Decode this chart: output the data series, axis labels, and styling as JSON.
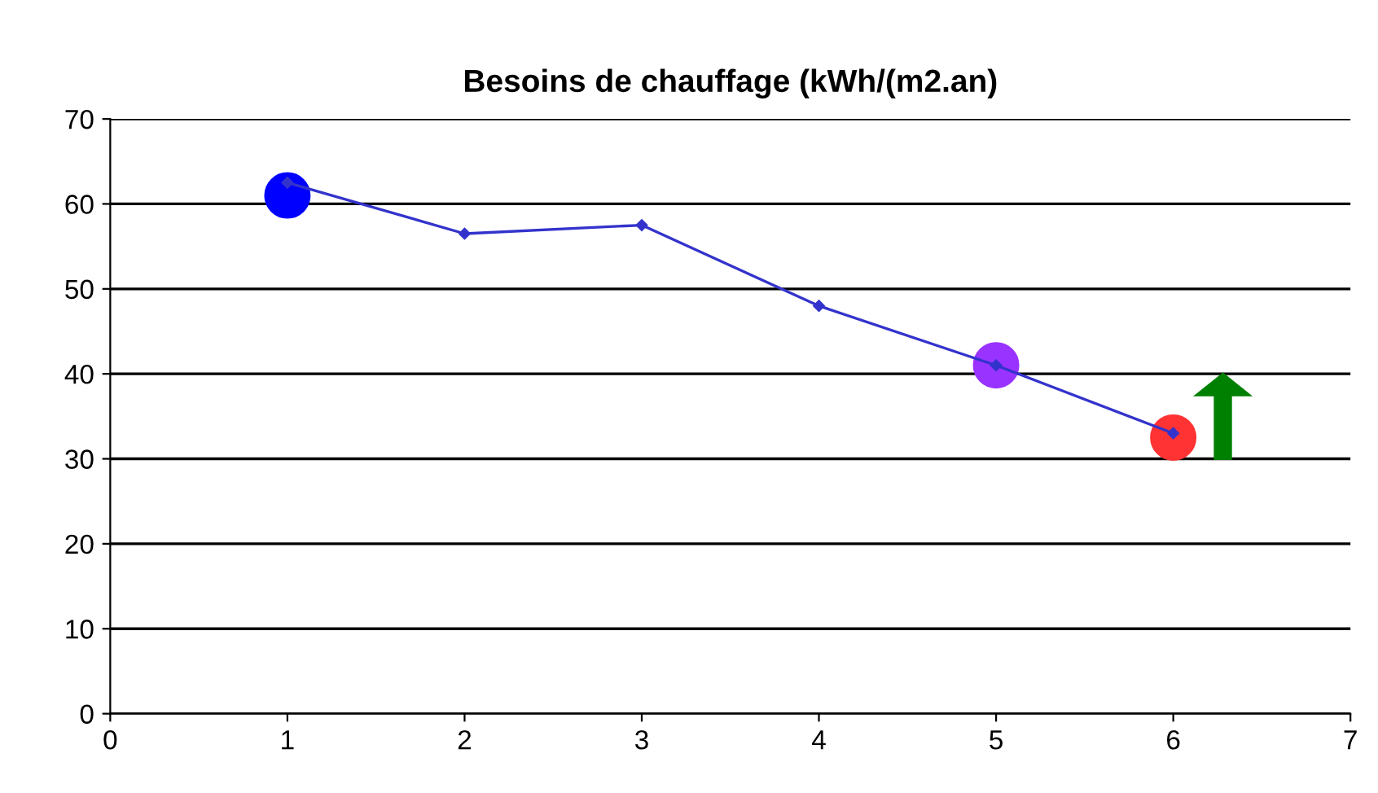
{
  "chart_data": {
    "type": "line",
    "title": "Besoins de chauffage (kWh/(m2.an)",
    "x": [
      1,
      2,
      3,
      4,
      5,
      6
    ],
    "series": [
      {
        "color": "#3333cc",
        "values": [
          62.5,
          56.5,
          57.5,
          48,
          41,
          33
        ],
        "marker": "diamond"
      },
      {
        "type": "scatter",
        "x": [
          1,
          5,
          6
        ],
        "values": [
          61,
          41,
          32.5
        ],
        "colors": [
          "#0000ff",
          "#9933ff",
          "#ff3333"
        ],
        "marker": "circle"
      }
    ],
    "xlim": [
      0,
      7
    ],
    "xticks": [
      0,
      1,
      2,
      3,
      4,
      5,
      6,
      7
    ],
    "ylim": [
      0,
      70
    ],
    "yticks": [
      0,
      10,
      20,
      30,
      40,
      50,
      60,
      70
    ],
    "grid": "y",
    "legend": false
  }
}
